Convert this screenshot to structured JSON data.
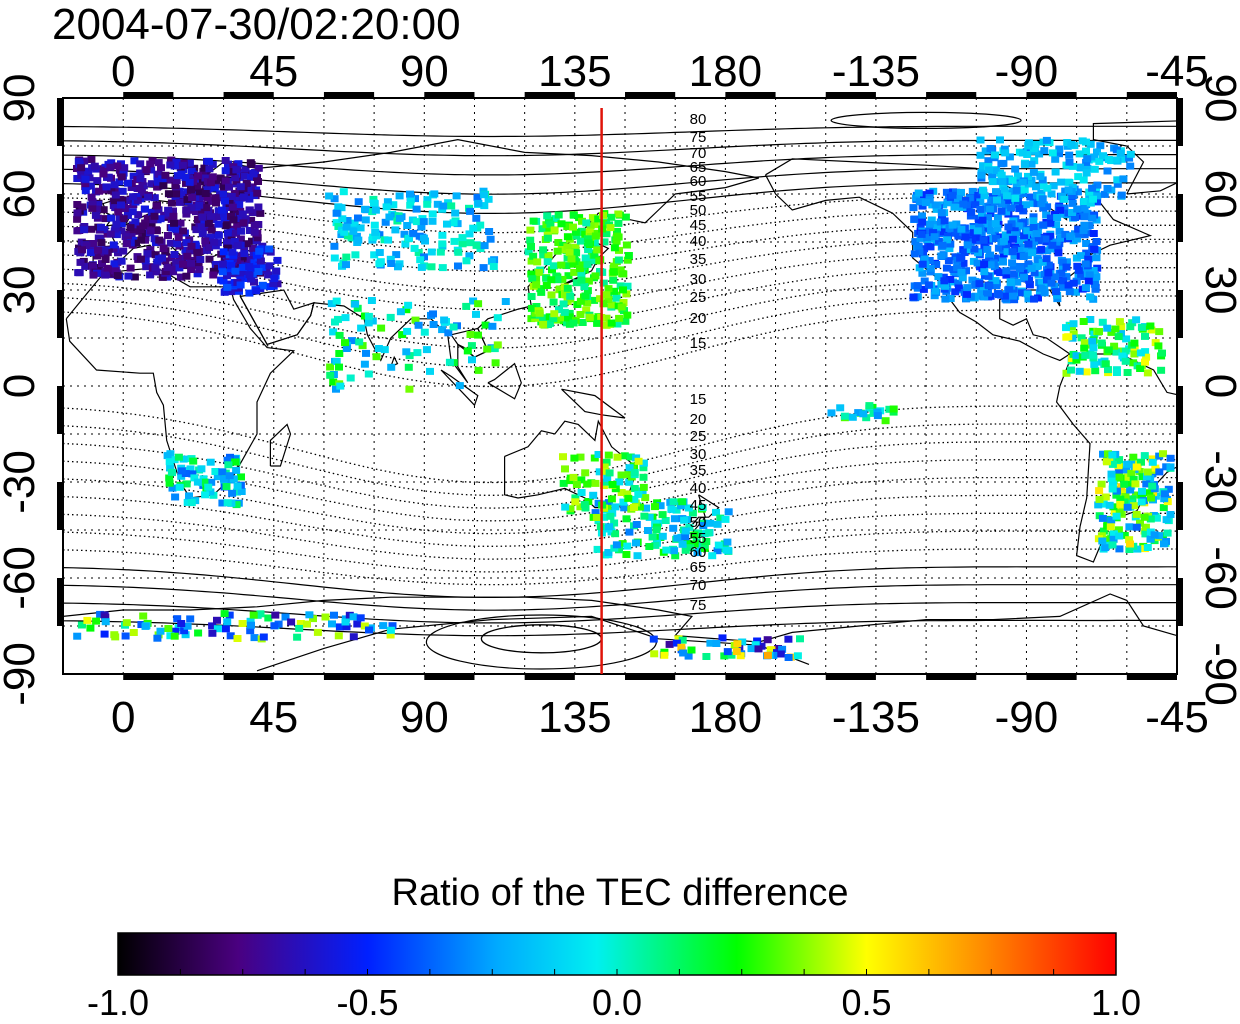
{
  "title": "2004-07-30/02:20:00",
  "map": {
    "lon_ticks": [
      "0",
      "45",
      "90",
      "135",
      "180",
      "-135",
      "-90",
      "-45"
    ],
    "lon_tick_values": [
      0,
      45,
      90,
      135,
      180,
      225,
      270,
      315
    ],
    "lat_ticks": [
      "90",
      "60",
      "30",
      "0",
      "-30",
      "-60",
      "-90"
    ],
    "lat_tick_values": [
      90,
      60,
      30,
      0,
      -30,
      -60,
      -90
    ],
    "lon_range": [
      -18,
      315
    ],
    "lat_range": [
      -90,
      90
    ],
    "marker_longitude": 143,
    "marker_color": "#e0140a",
    "contour_labels_north": [
      "80",
      "75",
      "70",
      "65",
      "60",
      "55",
      "50",
      "45",
      "40",
      "35",
      "30",
      "25",
      "20",
      "15"
    ],
    "contour_labels_south": [
      "15",
      "20",
      "25",
      "30",
      "35",
      "40",
      "45",
      "50",
      "55",
      "60",
      "65",
      "70",
      "75"
    ],
    "grid": "dotted"
  },
  "colorbar": {
    "title": "Ratio of the TEC difference",
    "range": [
      -1.0,
      1.0
    ],
    "labels": [
      "-1.0",
      "-0.5",
      "0.0",
      "0.5",
      "1.0"
    ],
    "label_values": [
      -1.0,
      -0.5,
      0.0,
      0.5,
      1.0
    ],
    "colors": [
      "#000000",
      "#4a0080",
      "#0020ff",
      "#00f0f0",
      "#00ff00",
      "#ffff00",
      "#ff0000"
    ]
  }
}
